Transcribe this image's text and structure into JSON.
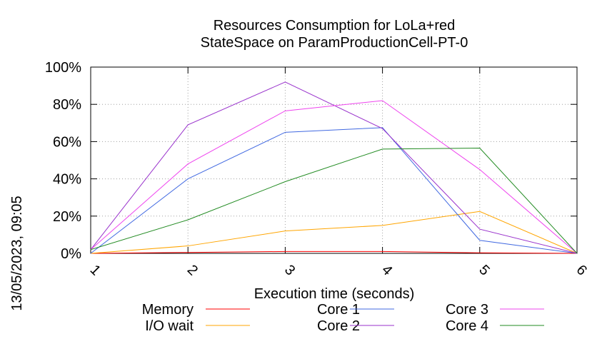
{
  "side_label": "13/05/2023, 09:05",
  "chart_data": {
    "type": "line",
    "title": [
      "Resources Consumption for LoLa+red",
      "StateSpace on ParamProductionCell-PT-0"
    ],
    "xlabel": "Execution time (seconds)",
    "ylabel": "",
    "x": [
      1,
      2,
      3,
      4,
      5,
      6
    ],
    "xticks": [
      "1",
      "2",
      "3",
      "4",
      "5",
      "6"
    ],
    "yticks": [
      "0%",
      "20%",
      "40%",
      "60%",
      "80%",
      "100%"
    ],
    "xlim": [
      1,
      6
    ],
    "ylim": [
      0,
      100
    ],
    "grid": true,
    "legend_position": "bottom",
    "series": [
      {
        "name": "Memory",
        "color": "#ff0000",
        "values": [
          0,
          0.5,
          1,
          1,
          0.3,
          0
        ]
      },
      {
        "name": "I/O wait",
        "color": "#ffa500",
        "values": [
          0,
          4,
          12,
          15,
          22.5,
          0
        ]
      },
      {
        "name": "Core 1",
        "color": "#4169e1",
        "values": [
          0,
          40,
          65,
          67.5,
          7,
          0
        ]
      },
      {
        "name": "Core 2",
        "color": "#9932cc",
        "values": [
          2,
          69,
          92,
          67,
          13,
          0
        ]
      },
      {
        "name": "Core 3",
        "color": "#ee44ee",
        "values": [
          2,
          48,
          76.5,
          82,
          45,
          0
        ]
      },
      {
        "name": "Core 4",
        "color": "#228b22",
        "values": [
          2,
          18,
          38.5,
          56,
          56.5,
          0
        ]
      }
    ]
  }
}
